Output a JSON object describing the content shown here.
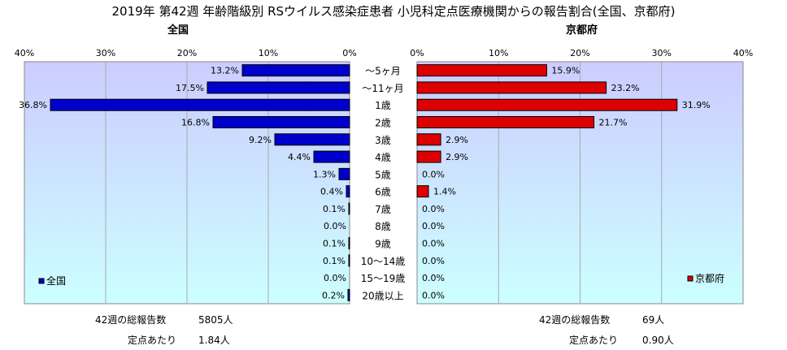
{
  "title": "2019年 第42週 年齢階級別 RSウイルス感染症患者 小児科定点医療機関からの報告割合(全国、京都府)",
  "left_subtitle": "全国",
  "right_subtitle": "京都府",
  "colors": {
    "national": "#0000cc",
    "kyoto": "#dd0000"
  },
  "chart_data": [
    {
      "type": "bar",
      "orientation": "horizontal",
      "direction": "right-to-left",
      "title": "全国",
      "categories": [
        "〜5ヶ月",
        "〜11ヶ月",
        "1歳",
        "2歳",
        "3歳",
        "4歳",
        "5歳",
        "6歳",
        "7歳",
        "8歳",
        "9歳",
        "10〜14歳",
        "15〜19歳",
        "20歳以上"
      ],
      "series": [
        {
          "name": "全国",
          "values": [
            13.2,
            17.5,
            36.8,
            16.8,
            9.2,
            4.4,
            1.3,
            0.4,
            0.1,
            0.0,
            0.1,
            0.1,
            0.0,
            0.2
          ]
        }
      ],
      "xlim": [
        0,
        40
      ],
      "ticks": [
        "40%",
        "30%",
        "20%",
        "10%",
        "0%"
      ],
      "value_labels": [
        "13.2%",
        "17.5%",
        "36.8%",
        "16.8%",
        "9.2%",
        "4.4%",
        "1.3%",
        "0.4%",
        "0.1%",
        "0.0%",
        "0.1%",
        "0.1%",
        "0.0%",
        "0.2%"
      ],
      "legend": "bottom-left",
      "grid": true
    },
    {
      "type": "bar",
      "orientation": "horizontal",
      "title": "京都府",
      "categories": [
        "〜5ヶ月",
        "〜11ヶ月",
        "1歳",
        "2歳",
        "3歳",
        "4歳",
        "5歳",
        "6歳",
        "7歳",
        "8歳",
        "9歳",
        "10〜14歳",
        "15〜19歳",
        "20歳以上"
      ],
      "series": [
        {
          "name": "京都府",
          "values": [
            15.9,
            23.2,
            31.9,
            21.7,
            2.9,
            2.9,
            0.0,
            1.4,
            0.0,
            0.0,
            0.0,
            0.0,
            0.0,
            0.0
          ]
        }
      ],
      "xlim": [
        0,
        40
      ],
      "ticks": [
        "0%",
        "10%",
        "20%",
        "30%",
        "40%"
      ],
      "value_labels": [
        "15.9%",
        "23.2%",
        "31.9%",
        "21.7%",
        "2.9%",
        "2.9%",
        "0.0%",
        "1.4%",
        "0.0%",
        "0.0%",
        "0.0%",
        "0.0%",
        "0.0%",
        "0.0%"
      ],
      "legend": "bottom-right",
      "grid": true
    }
  ],
  "notes": {
    "national_total_label": "42週の総報告数",
    "national_total_value": "5805人",
    "national_per_label": "定点あたり",
    "national_per_value": "1.84人",
    "kyoto_total_label": "42週の総報告数",
    "kyoto_total_value": "69人",
    "kyoto_per_label": "定点あたり",
    "kyoto_per_value": "0.90人"
  }
}
